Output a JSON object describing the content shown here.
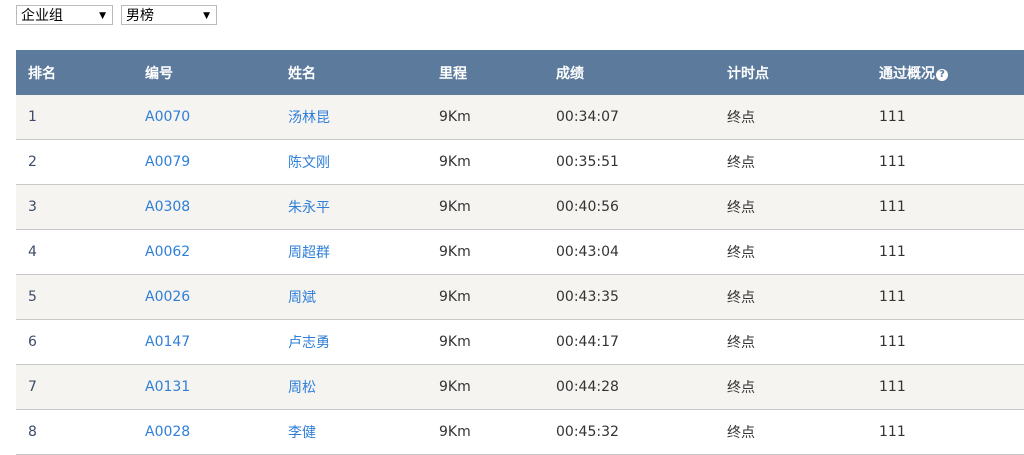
{
  "filters": {
    "group": "企业组",
    "gender": "男榜"
  },
  "headers": [
    "排名",
    "编号",
    "姓名",
    "里程",
    "成绩",
    "计时点",
    "通过概况"
  ],
  "rows": [
    [
      "1",
      "A0070",
      "汤林昆",
      "9Km",
      "00:34:07",
      "终点",
      "111"
    ],
    [
      "2",
      "A0079",
      "陈文刚",
      "9Km",
      "00:35:51",
      "终点",
      "111"
    ],
    [
      "3",
      "A0308",
      "朱永平",
      "9Km",
      "00:40:56",
      "终点",
      "111"
    ],
    [
      "4",
      "A0062",
      "周超群",
      "9Km",
      "00:43:04",
      "终点",
      "111"
    ],
    [
      "5",
      "A0026",
      "周斌",
      "9Km",
      "00:43:35",
      "终点",
      "111"
    ],
    [
      "6",
      "A0147",
      "卢志勇",
      "9Km",
      "00:44:17",
      "终点",
      "111"
    ],
    [
      "7",
      "A0131",
      "周松",
      "9Km",
      "00:44:28",
      "终点",
      "111"
    ],
    [
      "8",
      "A0028",
      "李健",
      "9Km",
      "00:45:32",
      "终点",
      "111"
    ]
  ]
}
